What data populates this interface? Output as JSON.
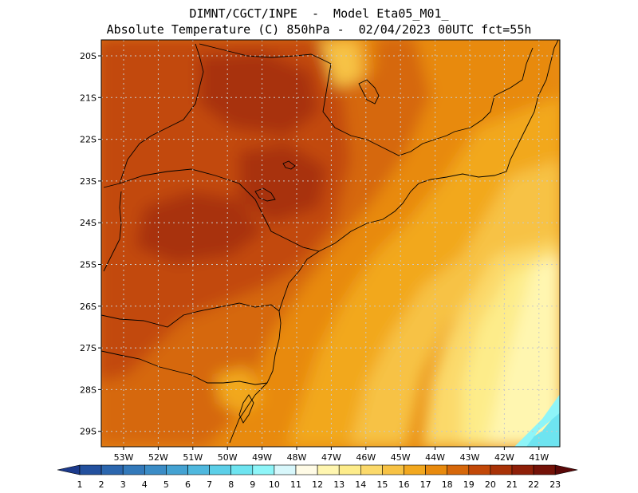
{
  "header": {
    "line1": "DIMNT/CGCT/INPE  -  Model Eta05_M01_",
    "line2": "Absolute Temperature (C) 850hPa -  02/04/2023 00UTC fct=55h"
  },
  "axes": {
    "lat_labels": [
      "20S",
      "21S",
      "22S",
      "23S",
      "24S",
      "25S",
      "26S",
      "27S",
      "28S",
      "29S"
    ],
    "lon_labels": [
      "53W",
      "52W",
      "51W",
      "50W",
      "49W",
      "48W",
      "47W",
      "46W",
      "45W",
      "44W",
      "43W",
      "42W",
      "41W"
    ]
  },
  "colorbar": {
    "labels": [
      "1",
      "2",
      "3",
      "4",
      "5",
      "6",
      "7",
      "8",
      "9",
      "10",
      "11",
      "12",
      "13",
      "14",
      "15",
      "16",
      "17",
      "18",
      "19",
      "20",
      "21",
      "22",
      "23"
    ],
    "colors": [
      "#1c3a8c",
      "#23509e",
      "#2b66ae",
      "#3379ba",
      "#3b8cc6",
      "#44a2d2",
      "#4fb8de",
      "#5ccfe8",
      "#6ee4f0",
      "#8ef5f8",
      "#d8f7fb",
      "#fffbe6",
      "#fff6b0",
      "#fdec8a",
      "#fbd96a",
      "#f7c244",
      "#f2a81f",
      "#e88a0e",
      "#d6670a",
      "#c24808",
      "#a83207",
      "#8e1f08",
      "#741208",
      "#5a0808"
    ]
  },
  "map": {
    "colors": {
      "very_hot": "#a83207",
      "hot": "#c24808",
      "warm": "#d6670a",
      "mid": "#e88a0e",
      "mild": "#f2a81f",
      "light": "#f7c244",
      "pale": "#fbd96a",
      "cream": "#fdec8a",
      "coolest": "#fff6b0",
      "lightest": "#fffbe6",
      "cold": "#6ee4f0",
      "ocean_edge": "#8ef5f8"
    }
  }
}
